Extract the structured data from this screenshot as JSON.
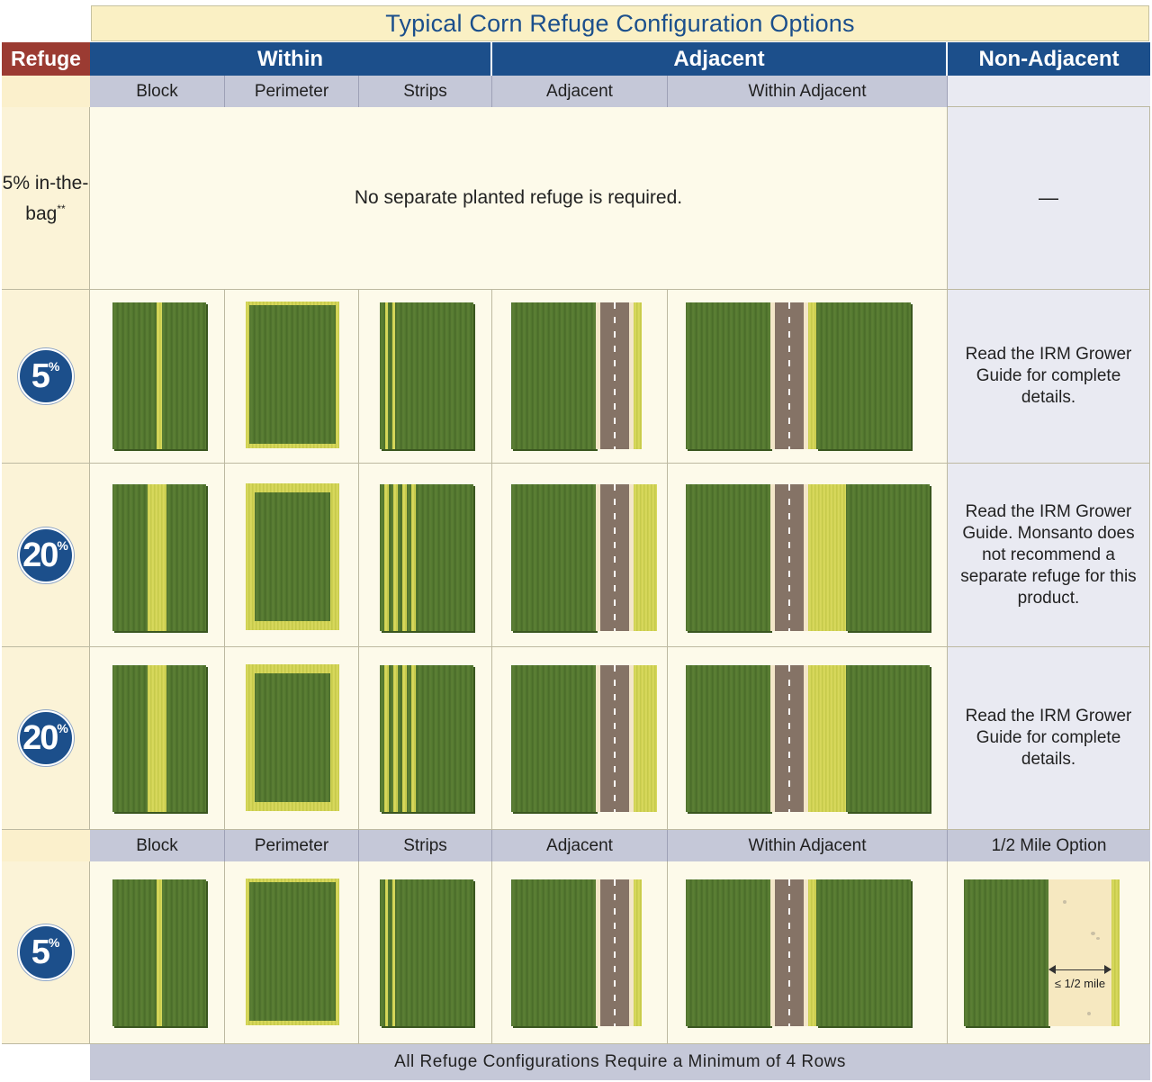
{
  "title": "Typical Corn Refuge Configuration Options",
  "header": {
    "refuge": "Refuge",
    "within": "Within",
    "adjacent": "Adjacent",
    "non_adjacent": "Non-Adjacent"
  },
  "subheader": {
    "block": "Block",
    "perimeter": "Perimeter",
    "strips": "Strips",
    "adjacent": "Adjacent",
    "within_adjacent": "Within Adjacent"
  },
  "rows": {
    "bag": {
      "label": "5% in-the-bag",
      "label_suffix": "**",
      "message": "No separate planted refuge is required.",
      "non_adjacent": "—"
    },
    "r1": {
      "pct_num": "5",
      "pct_sym": "%",
      "non_adjacent": "Read the IRM Grower Guide for complete details."
    },
    "r2": {
      "pct_num": "20",
      "pct_sym": "%",
      "non_adjacent": "Read the IRM Grower Guide. Monsanto does not recommend a separate refuge for this product."
    },
    "r3": {
      "pct_num": "20",
      "pct_sym": "%",
      "non_adjacent": "Read the IRM Grower Guide for complete details."
    },
    "r4": {
      "pct_num": "5",
      "pct_sym": "%"
    }
  },
  "subheader2": {
    "block": "Block",
    "perimeter": "Perimeter",
    "strips": "Strips",
    "adjacent": "Adjacent",
    "within_adjacent": "Within Adjacent",
    "half_mile": "1/2 Mile Option"
  },
  "half_mile_label": "≤ 1/2 mile",
  "footer": "All Refuge Configurations Require a Minimum of 4 Rows",
  "colors": {
    "header_blue": "#1c4f8b",
    "refuge_red": "#9b3b32",
    "title_text": "#1b4f8c",
    "corn_green": "#557a31",
    "refuge_yellow": "#d2d454",
    "road": "#857366"
  }
}
